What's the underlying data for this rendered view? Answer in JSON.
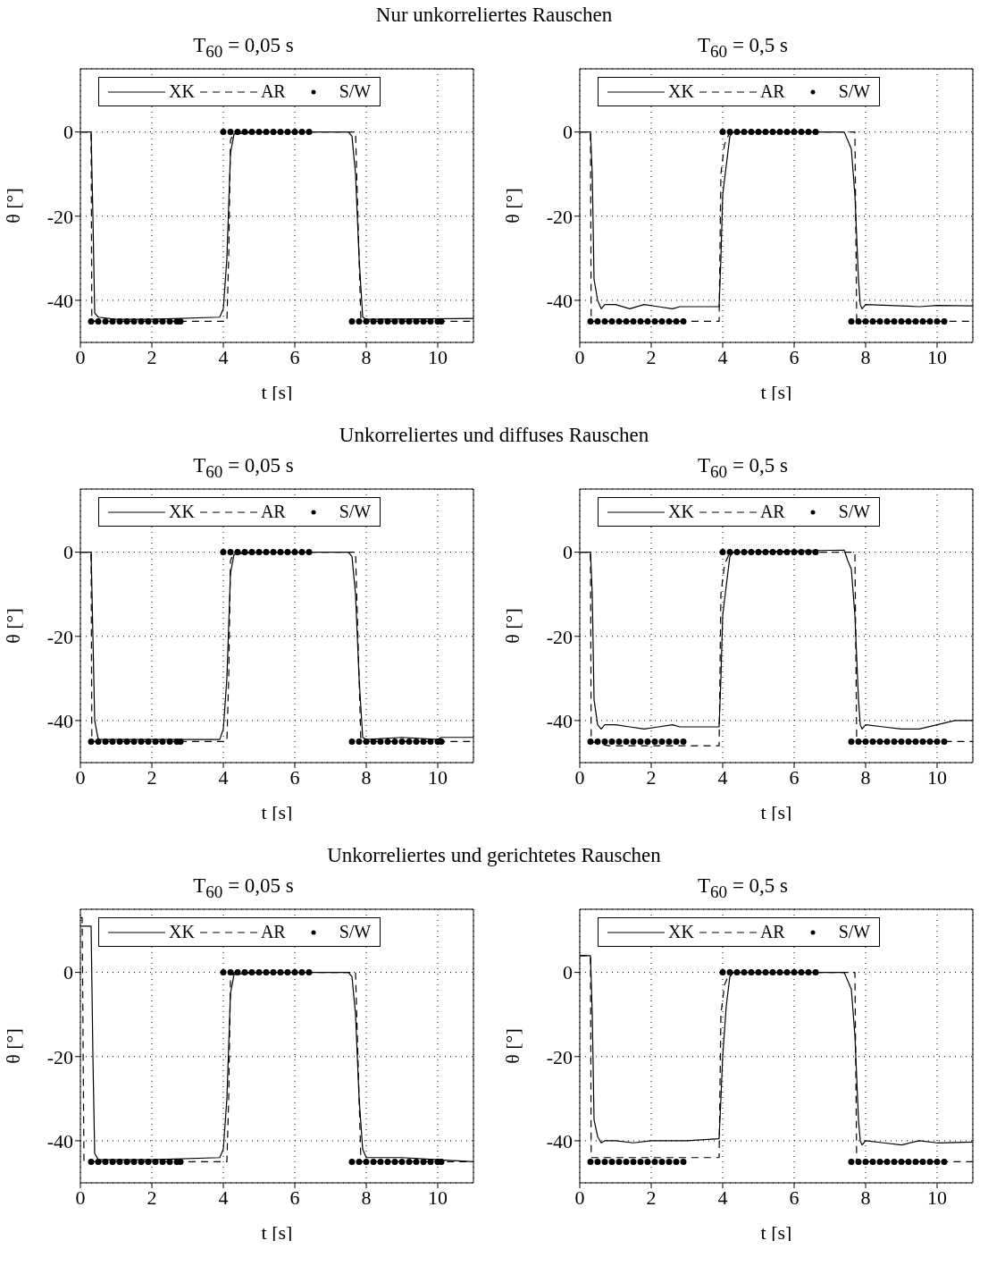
{
  "chart_data": [
    {
      "type": "line",
      "annotations": [
        "Nur unkorreliertes Rauschen"
      ],
      "title": "T$_{60}$ = 0,05 s",
      "xlabel": "t [s]",
      "ylabel": "θ [°]",
      "xlim": [
        0,
        11
      ],
      "xticks": [
        0,
        2,
        4,
        6,
        8,
        10
      ],
      "ylim": [
        -50,
        15
      ],
      "yticks": [
        -40,
        -20,
        0
      ],
      "grid": true,
      "legend": "top",
      "series": [
        {
          "name": "XK",
          "type": "line",
          "color": "#000000",
          "line_style": "solid",
          "marker": "none",
          "x": [
            0,
            0.3,
            0.35,
            0.4,
            0.5,
            1,
            2,
            3.9,
            4.0,
            4.1,
            4.2,
            4.3,
            5,
            7.5,
            7.6,
            7.7,
            7.8,
            7.9,
            8,
            11
          ],
          "values": [
            0,
            0,
            -20,
            -43,
            -44,
            -44.5,
            -44.5,
            -44,
            -42,
            -30,
            -5,
            -0.5,
            0,
            0,
            -1,
            -10,
            -30,
            -44,
            -44.5,
            -44.3
          ]
        },
        {
          "name": "AR",
          "type": "line",
          "color": "#000000",
          "line_style": "dashed",
          "marker": "none",
          "x": [
            0,
            0.3,
            0.32,
            4.1,
            4.15,
            4.2,
            4.3,
            7.7,
            7.8,
            7.85,
            11
          ],
          "values": [
            0,
            0,
            -45,
            -45,
            -30,
            -2,
            0,
            0,
            -30,
            -45,
            -45
          ]
        },
        {
          "name": "S/W",
          "type": "scatter",
          "color": "#000000",
          "marker": "circle",
          "x": [
            0.3,
            0.5,
            0.7,
            0.9,
            1.1,
            1.3,
            1.5,
            1.7,
            1.9,
            2.1,
            2.3,
            2.5,
            2.7,
            2.8,
            4.0,
            4.2,
            4.4,
            4.6,
            4.8,
            5.0,
            5.2,
            5.4,
            5.6,
            5.8,
            6.0,
            6.2,
            6.4,
            7.6,
            7.8,
            8.0,
            8.2,
            8.4,
            8.6,
            8.8,
            9.0,
            9.2,
            9.4,
            9.6,
            9.8,
            10.0,
            10.1
          ],
          "values": [
            -45,
            -45,
            -45,
            -45,
            -45,
            -45,
            -45,
            -45,
            -45,
            -45,
            -45,
            -45,
            -45,
            -45,
            0,
            0,
            0,
            0,
            0,
            0,
            0,
            0,
            0,
            0,
            0,
            0,
            0,
            -45,
            -45,
            -45,
            -45,
            -45,
            -45,
            -45,
            -45,
            -45,
            -45,
            -45,
            -45,
            -45,
            -45
          ]
        }
      ]
    },
    {
      "type": "line",
      "title": "T$_{60}$ = 0,5 s",
      "xlabel": "t [s]",
      "ylabel": "θ [°]",
      "xlim": [
        0,
        11
      ],
      "xticks": [
        0,
        2,
        4,
        6,
        8,
        10
      ],
      "ylim": [
        -50,
        15
      ],
      "yticks": [
        -40,
        -20,
        0
      ],
      "grid": true,
      "legend": "top",
      "series": [
        {
          "name": "XK",
          "type": "line",
          "color": "#000000",
          "line_style": "solid",
          "marker": "none",
          "x": [
            0,
            0.3,
            0.35,
            0.4,
            0.5,
            0.6,
            0.7,
            1,
            1.4,
            1.8,
            2.2,
            2.6,
            2.8,
            3.9,
            3.95,
            4.0,
            4.1,
            4.2,
            4.3,
            7.4,
            7.5,
            7.6,
            7.7,
            7.8,
            7.85,
            7.9,
            8,
            9,
            9.5,
            10,
            11
          ],
          "values": [
            0,
            0,
            -10,
            -35,
            -40,
            -42,
            -41,
            -41,
            -42,
            -41,
            -41.5,
            -42,
            -41.5,
            -41.5,
            -30,
            -15,
            -8,
            -1,
            0,
            0,
            -2,
            -4,
            -15,
            -35,
            -41,
            -42,
            -41,
            -41.3,
            -41.5,
            -41.2,
            -41.3
          ]
        },
        {
          "name": "AR",
          "type": "line",
          "color": "#000000",
          "line_style": "dashed",
          "marker": "none",
          "x": [
            0,
            0.3,
            0.32,
            3.9,
            3.95,
            4.05,
            4.2,
            7.7,
            7.75,
            11
          ],
          "values": [
            0,
            0,
            -45,
            -45,
            -10,
            -3,
            0,
            0,
            -45,
            -45
          ]
        },
        {
          "name": "S/W",
          "type": "scatter",
          "color": "#000000",
          "marker": "circle",
          "x": [
            0.3,
            0.5,
            0.7,
            0.9,
            1.1,
            1.3,
            1.5,
            1.7,
            1.9,
            2.1,
            2.3,
            2.5,
            2.7,
            2.9,
            4.0,
            4.2,
            4.4,
            4.6,
            4.8,
            5.0,
            5.2,
            5.4,
            5.6,
            5.8,
            6.0,
            6.2,
            6.4,
            6.6,
            7.6,
            7.8,
            8.0,
            8.2,
            8.4,
            8.6,
            8.8,
            9.0,
            9.2,
            9.4,
            9.6,
            9.8,
            10.0,
            10.2
          ],
          "values": [
            -45,
            -45,
            -45,
            -45,
            -45,
            -45,
            -45,
            -45,
            -45,
            -45,
            -45,
            -45,
            -45,
            -45,
            0,
            0,
            0,
            0,
            0,
            0,
            0,
            0,
            0,
            0,
            0,
            0,
            0,
            0,
            -45,
            -45,
            -45,
            -45,
            -45,
            -45,
            -45,
            -45,
            -45,
            -45,
            -45,
            -45,
            -45,
            -45
          ]
        }
      ]
    },
    {
      "type": "line",
      "annotations": [
        "Unkorreliertes und diffuses Rauschen"
      ],
      "title": "T$_{60}$ = 0,05 s",
      "xlabel": "t [s]",
      "ylabel": "θ [°]",
      "xlim": [
        0,
        11
      ],
      "xticks": [
        0,
        2,
        4,
        6,
        8,
        10
      ],
      "ylim": [
        -50,
        15
      ],
      "yticks": [
        -40,
        -20,
        0
      ],
      "grid": true,
      "legend": "top",
      "series": [
        {
          "name": "XK",
          "type": "line",
          "color": "#000000",
          "line_style": "solid",
          "marker": "none",
          "x": [
            0,
            0.3,
            0.35,
            0.4,
            0.5,
            1,
            2,
            3.9,
            4.0,
            4.1,
            4.2,
            4.3,
            5,
            7.5,
            7.6,
            7.7,
            7.8,
            7.9,
            8,
            9,
            10,
            10.1,
            11
          ],
          "values": [
            0,
            0,
            -20,
            -40,
            -44.5,
            -44.5,
            -44.5,
            -44.5,
            -42,
            -30,
            -5,
            -0.5,
            0,
            0,
            -1,
            -10,
            -30,
            -44,
            -44.5,
            -44,
            -44.5,
            -44,
            -44
          ]
        },
        {
          "name": "AR",
          "type": "line",
          "color": "#000000",
          "line_style": "dashed",
          "marker": "none",
          "x": [
            0,
            0.3,
            0.32,
            4.1,
            4.15,
            4.2,
            4.3,
            7.7,
            7.8,
            7.85,
            11
          ],
          "values": [
            0,
            0,
            -45,
            -45,
            -30,
            -2,
            0,
            0,
            -30,
            -45,
            -45
          ]
        },
        {
          "name": "S/W",
          "type": "scatter",
          "color": "#000000",
          "marker": "circle",
          "x": [
            0.3,
            0.5,
            0.7,
            0.9,
            1.1,
            1.3,
            1.5,
            1.7,
            1.9,
            2.1,
            2.3,
            2.5,
            2.7,
            2.8,
            4.0,
            4.2,
            4.4,
            4.6,
            4.8,
            5.0,
            5.2,
            5.4,
            5.6,
            5.8,
            6.0,
            6.2,
            6.4,
            7.6,
            7.8,
            8.0,
            8.2,
            8.4,
            8.6,
            8.8,
            9.0,
            9.2,
            9.4,
            9.6,
            9.8,
            10.0,
            10.1
          ],
          "values": [
            -45,
            -45,
            -45,
            -45,
            -45,
            -45,
            -45,
            -45,
            -45,
            -45,
            -45,
            -45,
            -45,
            -45,
            0,
            0,
            0,
            0,
            0,
            0,
            0,
            0,
            0,
            0,
            0,
            0,
            0,
            -45,
            -45,
            -45,
            -45,
            -45,
            -45,
            -45,
            -45,
            -45,
            -45,
            -45,
            -45,
            -45,
            -45
          ]
        }
      ]
    },
    {
      "type": "line",
      "title": "T$_{60}$ = 0,5 s",
      "xlabel": "t [s]",
      "ylabel": "θ [°]",
      "xlim": [
        0,
        11
      ],
      "xticks": [
        0,
        2,
        4,
        6,
        8,
        10
      ],
      "ylim": [
        -50,
        15
      ],
      "yticks": [
        -40,
        -20,
        0
      ],
      "grid": true,
      "legend": "top",
      "series": [
        {
          "name": "XK",
          "type": "line",
          "color": "#000000",
          "line_style": "solid",
          "marker": "none",
          "x": [
            0,
            0.3,
            0.35,
            0.4,
            0.5,
            0.6,
            0.7,
            1,
            1.4,
            1.8,
            2.2,
            2.6,
            2.8,
            3.9,
            3.95,
            4.0,
            4.1,
            4.2,
            4.3,
            7.4,
            7.5,
            7.6,
            7.7,
            7.8,
            7.85,
            7.9,
            8,
            8.5,
            9,
            9.5,
            10,
            10.5,
            11
          ],
          "values": [
            0,
            0,
            -10,
            -35,
            -41,
            -42,
            -41,
            -41,
            -41.5,
            -42,
            -41.5,
            -41,
            -41.5,
            -41.5,
            -30,
            -15,
            -8,
            -1,
            0,
            0.5,
            -2,
            -4,
            -15,
            -35,
            -41,
            -42,
            -41,
            -41.5,
            -42,
            -42,
            -41,
            -40,
            -40
          ]
        },
        {
          "name": "AR",
          "type": "line",
          "color": "#000000",
          "line_style": "dashed",
          "marker": "none",
          "x": [
            0,
            0.3,
            0.32,
            0.8,
            3.9,
            3.95,
            4.05,
            4.2,
            7.7,
            7.75,
            11
          ],
          "values": [
            0,
            0,
            -45,
            -46,
            -46,
            -10,
            -3,
            0,
            0,
            -45,
            -45
          ]
        },
        {
          "name": "S/W",
          "type": "scatter",
          "color": "#000000",
          "marker": "circle",
          "x": [
            0.3,
            0.5,
            0.7,
            0.9,
            1.1,
            1.3,
            1.5,
            1.7,
            1.9,
            2.1,
            2.3,
            2.5,
            2.7,
            2.9,
            4.0,
            4.2,
            4.4,
            4.6,
            4.8,
            5.0,
            5.2,
            5.4,
            5.6,
            5.8,
            6.0,
            6.2,
            6.4,
            6.6,
            7.6,
            7.8,
            8.0,
            8.2,
            8.4,
            8.6,
            8.8,
            9.0,
            9.2,
            9.4,
            9.6,
            9.8,
            10.0,
            10.2
          ],
          "values": [
            -45,
            -45,
            -45,
            -45,
            -45,
            -45,
            -45,
            -45,
            -45,
            -45,
            -45,
            -45,
            -45,
            -45,
            0,
            0,
            0,
            0,
            0,
            0,
            0,
            0,
            0,
            0,
            0,
            0,
            0,
            0,
            -45,
            -45,
            -45,
            -45,
            -45,
            -45,
            -45,
            -45,
            -45,
            -45,
            -45,
            -45,
            -45,
            -45
          ]
        }
      ]
    },
    {
      "type": "line",
      "annotations": [
        "Unkorreliertes und gerichtetes Rauschen"
      ],
      "title": "T$_{60}$ = 0,05 s",
      "xlabel": "t [s]",
      "ylabel": "θ [°]",
      "xlim": [
        0,
        11
      ],
      "xticks": [
        0,
        2,
        4,
        6,
        8,
        10
      ],
      "ylim": [
        -50,
        15
      ],
      "yticks": [
        -40,
        -20,
        0
      ],
      "grid": true,
      "legend": "top",
      "series": [
        {
          "name": "XK",
          "type": "line",
          "color": "#000000",
          "line_style": "solid",
          "marker": "none",
          "x": [
            0,
            0.3,
            0.35,
            0.4,
            0.5,
            1,
            2,
            3.9,
            4.0,
            4.1,
            4.2,
            4.3,
            5,
            7.5,
            7.6,
            7.7,
            7.8,
            7.9,
            8,
            9,
            10,
            11
          ],
          "values": [
            11,
            11,
            -20,
            -43,
            -44.5,
            -44.5,
            -44.5,
            -44,
            -42,
            -30,
            -5,
            -0.5,
            0,
            0,
            -1,
            -10,
            -30,
            -42,
            -44,
            -44,
            -44.5,
            -45
          ]
        },
        {
          "name": "AR",
          "type": "line",
          "color": "#000000",
          "line_style": "dashed",
          "marker": "none",
          "x": [
            0,
            0.05,
            0.1,
            0.32,
            4.1,
            4.15,
            4.2,
            4.3,
            7.7,
            7.8,
            7.85,
            11
          ],
          "values": [
            13,
            13,
            -45,
            -45,
            -45,
            -30,
            -2,
            0,
            0,
            -30,
            -45,
            -45
          ]
        },
        {
          "name": "S/W",
          "type": "scatter",
          "color": "#000000",
          "marker": "circle",
          "x": [
            0.3,
            0.5,
            0.7,
            0.9,
            1.1,
            1.3,
            1.5,
            1.7,
            1.9,
            2.1,
            2.3,
            2.5,
            2.7,
            2.8,
            4.0,
            4.2,
            4.4,
            4.6,
            4.8,
            5.0,
            5.2,
            5.4,
            5.6,
            5.8,
            6.0,
            6.2,
            6.4,
            7.6,
            7.8,
            8.0,
            8.2,
            8.4,
            8.6,
            8.8,
            9.0,
            9.2,
            9.4,
            9.6,
            9.8,
            10.0,
            10.1
          ],
          "values": [
            -45,
            -45,
            -45,
            -45,
            -45,
            -45,
            -45,
            -45,
            -45,
            -45,
            -45,
            -45,
            -45,
            -45,
            0,
            0,
            0,
            0,
            0,
            0,
            0,
            0,
            0,
            0,
            0,
            0,
            0,
            -45,
            -45,
            -45,
            -45,
            -45,
            -45,
            -45,
            -45,
            -45,
            -45,
            -45,
            -45,
            -45,
            -45
          ]
        }
      ]
    },
    {
      "type": "line",
      "title": "T$_{60}$ = 0,5 s",
      "xlabel": "t [s]",
      "ylabel": "θ [°]",
      "xlim": [
        0,
        11
      ],
      "xticks": [
        0,
        2,
        4,
        6,
        8,
        10
      ],
      "ylim": [
        -50,
        15
      ],
      "yticks": [
        -40,
        -20,
        0
      ],
      "grid": true,
      "legend": "top",
      "series": [
        {
          "name": "XK",
          "type": "line",
          "color": "#000000",
          "line_style": "solid",
          "marker": "none",
          "x": [
            0,
            0.3,
            0.35,
            0.4,
            0.5,
            0.6,
            0.7,
            1,
            1.5,
            2,
            2.5,
            3,
            3.9,
            3.95,
            4.0,
            4.1,
            4.2,
            4.3,
            7.4,
            7.5,
            7.6,
            7.7,
            7.8,
            7.85,
            7.9,
            8,
            8.5,
            9,
            9.5,
            10,
            11
          ],
          "values": [
            4,
            4,
            -10,
            -35,
            -39,
            -40.5,
            -40,
            -40,
            -40.5,
            -40,
            -40,
            -40,
            -39.5,
            -30,
            -20,
            -8,
            -1,
            0,
            0,
            -2,
            -4,
            -15,
            -35,
            -40,
            -41,
            -40,
            -40.5,
            -41,
            -40,
            -40.5,
            -40.3
          ]
        },
        {
          "name": "AR",
          "type": "line",
          "color": "#000000",
          "line_style": "dashed",
          "marker": "none",
          "x": [
            0,
            0.3,
            0.32,
            0.5,
            3.9,
            3.95,
            4.05,
            4.2,
            7.7,
            7.75,
            11
          ],
          "values": [
            4,
            4,
            -44,
            -44,
            -44,
            -10,
            -3,
            0,
            0,
            -45,
            -45
          ]
        },
        {
          "name": "S/W",
          "type": "scatter",
          "color": "#000000",
          "marker": "circle",
          "x": [
            0.3,
            0.5,
            0.7,
            0.9,
            1.1,
            1.3,
            1.5,
            1.7,
            1.9,
            2.1,
            2.3,
            2.5,
            2.7,
            2.9,
            4.0,
            4.2,
            4.4,
            4.6,
            4.8,
            5.0,
            5.2,
            5.4,
            5.6,
            5.8,
            6.0,
            6.2,
            6.4,
            6.6,
            7.6,
            7.8,
            8.0,
            8.2,
            8.4,
            8.6,
            8.8,
            9.0,
            9.2,
            9.4,
            9.6,
            9.8,
            10.0,
            10.2
          ],
          "values": [
            -45,
            -45,
            -45,
            -45,
            -45,
            -45,
            -45,
            -45,
            -45,
            -45,
            -45,
            -45,
            -45,
            -45,
            0,
            0,
            0,
            0,
            0,
            0,
            0,
            0,
            0,
            0,
            0,
            0,
            0,
            0,
            -45,
            -45,
            -45,
            -45,
            -45,
            -45,
            -45,
            -45,
            -45,
            -45,
            -45,
            -45,
            -45,
            -45
          ]
        }
      ]
    }
  ]
}
